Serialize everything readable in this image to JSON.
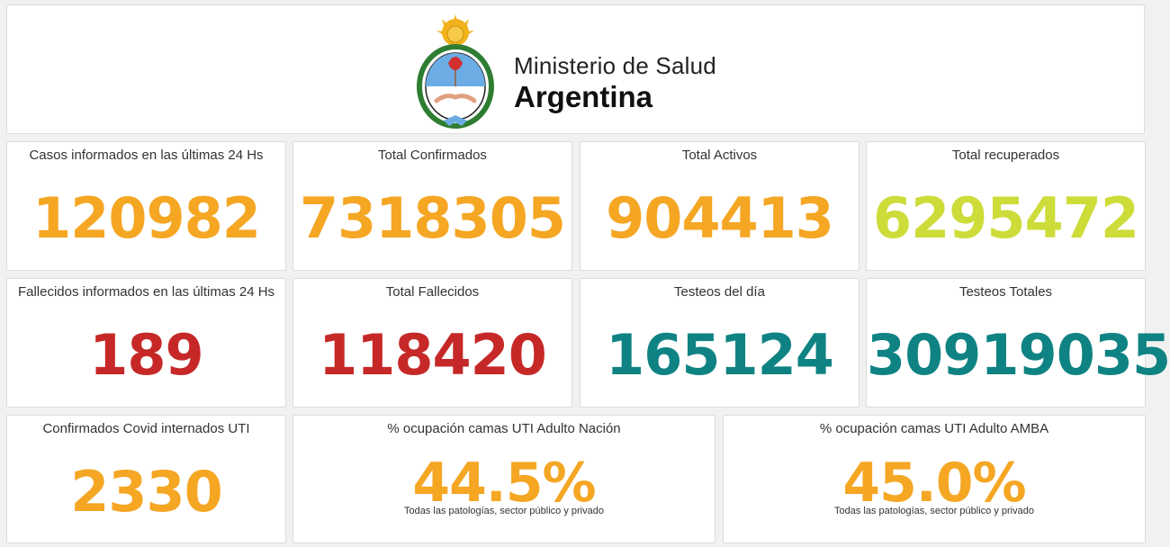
{
  "header": {
    "title_line1": "Ministerio de Salud",
    "title_line2": "Argentina",
    "logo_icon": "argentina-coat-of-arms-icon"
  },
  "colors": {
    "orange": "#f5a623",
    "yellow_green": "#cddc39",
    "red": "#c62828",
    "teal": "#0f8383"
  },
  "cards": [
    {
      "title": "Casos informados en las últimas 24 Hs",
      "value": "120982",
      "color": "#f5a623"
    },
    {
      "title": "Total Confirmados",
      "value": "7318305",
      "color": "#f5a623"
    },
    {
      "title": "Total Activos",
      "value": "904413",
      "color": "#f5a623"
    },
    {
      "title": "Total recuperados",
      "value": "6295472",
      "color": "#cddc39"
    },
    {
      "title": "Fallecidos informados en las últimas 24 Hs",
      "value": "189",
      "color": "#c62828"
    },
    {
      "title": "Total Fallecidos",
      "value": "118420",
      "color": "#c62828"
    },
    {
      "title": "Testeos del día",
      "value": "165124",
      "color": "#0f8383"
    },
    {
      "title": "Testeos Totales",
      "value": "30919035",
      "color": "#0f8383"
    },
    {
      "title": "Confirmados Covid internados UTI",
      "value": "2330",
      "color": "#f5a623"
    },
    {
      "title": "% ocupación camas UTI Adulto Nación",
      "value": "44.5%",
      "note": "Todas las patologías, sector público y privado",
      "color": "#f5a623"
    },
    {
      "title": "% ocupación camas UTI Adulto AMBA",
      "value": "45.0%",
      "note": "Todas las patologías, sector público y privado",
      "color": "#f5a623"
    }
  ]
}
